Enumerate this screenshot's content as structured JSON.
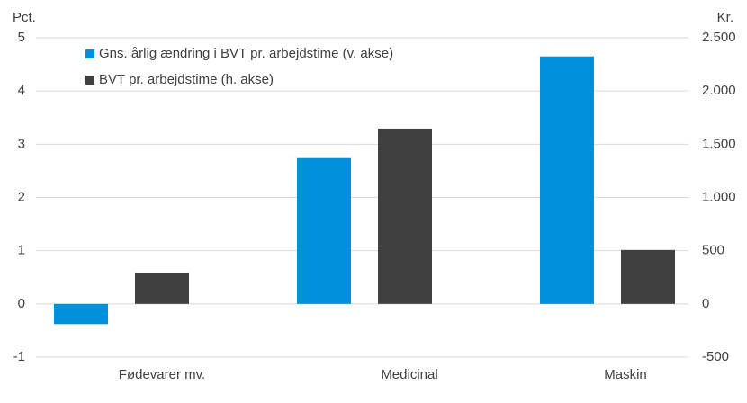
{
  "chart_data": {
    "type": "bar",
    "left_axis_label": "Pct.",
    "right_axis_label": "Kr.",
    "categories": [
      "Fødevarer mv.",
      "Medicinal",
      "Maskin"
    ],
    "series": [
      {
        "name": "Gns. årlig ændring i BVT pr. arbejdstime (v. akse)",
        "color": "#0091da",
        "values": [
          -0.38,
          2.74,
          4.65
        ]
      },
      {
        "name": "BVT pr. arbejdstime (h. akse)",
        "color": "#404040",
        "values": [
          287,
          1647,
          507
        ],
        "axis": "y2"
      }
    ],
    "ylim": [
      -1,
      5
    ],
    "yticks": [
      -1,
      0,
      1,
      2,
      3,
      4,
      5
    ],
    "y2lim": [
      -500,
      2500
    ],
    "y2ticks": [
      -500,
      0,
      500,
      {
        "value": 1000,
        "label": "1.000"
      },
      {
        "value": 1500,
        "label": "1.500"
      },
      {
        "value": 2000,
        "label": "2.000"
      },
      {
        "value": 2500,
        "label": "2.500"
      }
    ],
    "grid": true
  }
}
